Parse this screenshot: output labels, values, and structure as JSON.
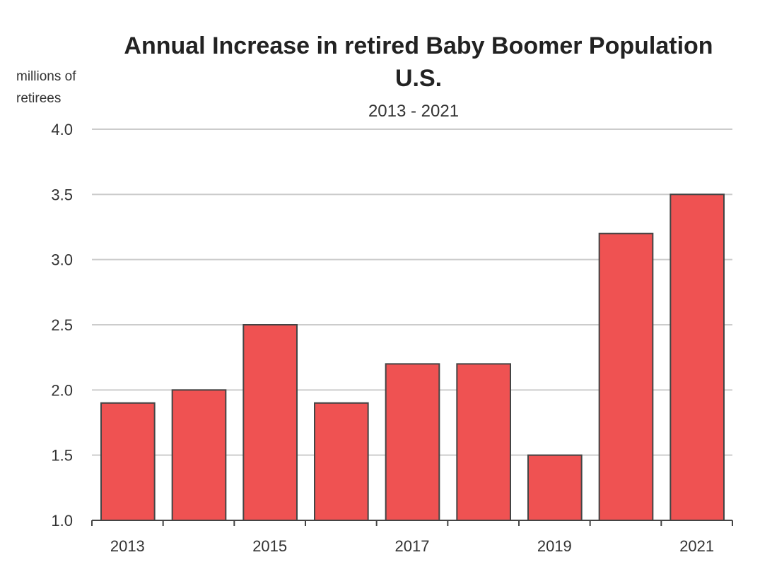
{
  "chart_data": {
    "type": "bar",
    "title": "Annual Increase in retired Baby Boomer Population",
    "title_line2": "U.S.",
    "subtitle": "2013 - 2021",
    "ylabel_line1": "millions of",
    "ylabel_line2": "retirees",
    "xlabel": "",
    "categories": [
      "2013",
      "2014",
      "2015",
      "2016",
      "2017",
      "2018",
      "2019",
      "2020",
      "2021"
    ],
    "x_tick_labels": [
      "2013",
      "2015",
      "2017",
      "2019",
      "2021"
    ],
    "values": [
      1.9,
      2.0,
      2.5,
      1.9,
      2.2,
      2.2,
      1.5,
      3.2,
      3.5
    ],
    "ylim": [
      1.0,
      4.0
    ],
    "y_ticks": [
      "1.0",
      "1.5",
      "2.0",
      "2.5",
      "3.0",
      "3.5",
      "4.0"
    ],
    "grid": true,
    "bar_color": "#ef5252",
    "bar_edge_color": "#444444",
    "grid_color": "#cccccc"
  }
}
